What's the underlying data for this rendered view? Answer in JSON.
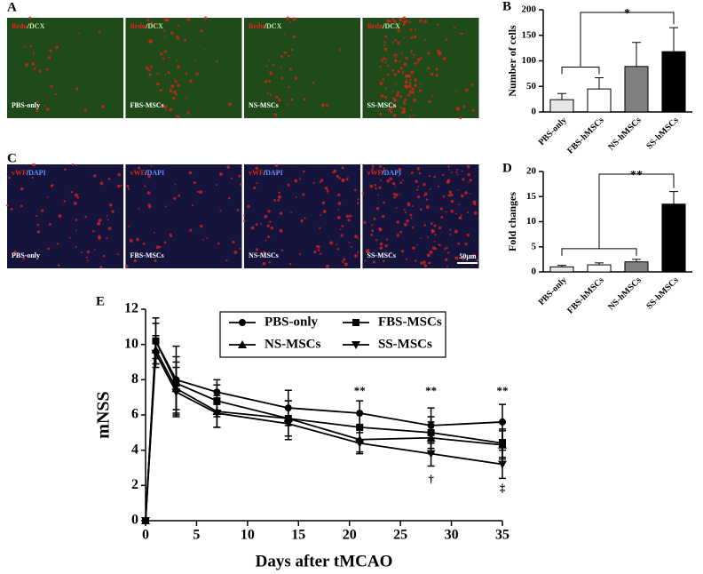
{
  "panel_A": {
    "label": "A",
    "tiles": [
      {
        "stain": [
          "Brdu",
          "/",
          "DCX"
        ],
        "group": "PBS-only"
      },
      {
        "stain": [
          "Brdu",
          "/",
          "DCX"
        ],
        "group": "FBS-MSCs"
      },
      {
        "stain": [
          "Brdu",
          "/",
          "DCX"
        ],
        "group": "NS-MSCs"
      },
      {
        "stain": [
          "Brdu",
          "/",
          "DCX"
        ],
        "group": "SS-MSCs"
      }
    ]
  },
  "panel_C": {
    "label": "C",
    "scale_bar": "50μm",
    "tiles": [
      {
        "stain": [
          "vWF",
          "/",
          "DAPI"
        ],
        "group": "PBS-only"
      },
      {
        "stain": [
          "vWF",
          "/",
          "DAPI"
        ],
        "group": "FBS-MSCs"
      },
      {
        "stain": [
          "vWF",
          "/",
          "DAPI"
        ],
        "group": "NS-MSCs"
      },
      {
        "stain": [
          "vWF",
          "/",
          "DAPI"
        ],
        "group": "SS-MSCs"
      }
    ]
  },
  "chart_data": [
    {
      "type": "bar",
      "panel": "B",
      "ylabel": "Number of cells",
      "categories": [
        "PBS-only",
        "FBS-hMSCs",
        "NS-hMSCs",
        "SS-hMSCs"
      ],
      "values": [
        24,
        45,
        89,
        118
      ],
      "errors": [
        12,
        22,
        47,
        47
      ],
      "colors": [
        "#e6e6e6",
        "#ffffff",
        "#808080",
        "#000000"
      ],
      "ylim": [
        0,
        200
      ],
      "yticks": [
        0,
        50,
        100,
        150,
        200
      ],
      "annotation": "*"
    },
    {
      "type": "bar",
      "panel": "D",
      "ylabel": "Fold changes",
      "categories": [
        "PBS-only",
        "FBS-hMSCs",
        "NS-hMSCs",
        "SS-hMSCs"
      ],
      "values": [
        1.0,
        1.4,
        2.0,
        13.5
      ],
      "errors": [
        0.3,
        0.4,
        0.5,
        2.5
      ],
      "colors": [
        "#e6e6e6",
        "#ffffff",
        "#808080",
        "#000000"
      ],
      "ylim": [
        0,
        20
      ],
      "yticks": [
        0,
        5,
        10,
        15,
        20
      ],
      "annotation": "**"
    },
    {
      "type": "line",
      "panel": "E",
      "ylabel": "mNSS",
      "xlabel": "Days after tMCAO",
      "x": [
        0,
        1,
        3,
        7,
        14,
        21,
        28,
        35
      ],
      "xlim": [
        0,
        35
      ],
      "xticks": [
        0,
        5,
        10,
        15,
        20,
        25,
        30,
        35
      ],
      "ylim": [
        0,
        12
      ],
      "yticks": [
        0,
        2,
        4,
        6,
        8,
        10,
        12
      ],
      "series": [
        {
          "name": "PBS-only",
          "marker": "circle",
          "color": "#000000",
          "values": [
            0,
            10.2,
            8.0,
            7.3,
            6.4,
            6.1,
            5.4,
            5.6
          ],
          "errors": [
            0,
            1.3,
            1.9,
            0.7,
            1.0,
            0.7,
            1.0,
            1.0
          ]
        },
        {
          "name": "FBS-MSCs",
          "marker": "square",
          "color": "#000000",
          "values": [
            0,
            10.2,
            7.8,
            6.8,
            5.8,
            5.3,
            5.0,
            4.4
          ],
          "errors": [
            0,
            1.0,
            1.5,
            0.9,
            1.0,
            0.8,
            0.9,
            0.8
          ]
        },
        {
          "name": "NS-MSCs",
          "marker": "triangle-up",
          "color": "#000000",
          "values": [
            0,
            9.7,
            7.5,
            6.2,
            5.8,
            4.6,
            4.7,
            4.3
          ],
          "errors": [
            0,
            0.8,
            1.5,
            0.9,
            1.0,
            0.7,
            0.9,
            0.8
          ]
        },
        {
          "name": "SS-MSCs",
          "marker": "triangle-down",
          "color": "#000000",
          "values": [
            0,
            9.5,
            7.3,
            6.1,
            5.5,
            4.4,
            3.8,
            3.2
          ],
          "errors": [
            0,
            0.8,
            1.4,
            0.8,
            0.9,
            0.6,
            0.7,
            0.8
          ]
        }
      ],
      "annotations": [
        {
          "text": "**",
          "x": 21,
          "y": 7.3
        },
        {
          "text": "**",
          "x": 28,
          "y": 7.3
        },
        {
          "text": "**",
          "x": 35,
          "y": 7.3
        },
        {
          "text": "†",
          "x": 28,
          "y": 2.3
        },
        {
          "text": "‡",
          "x": 35,
          "y": 1.8
        }
      ]
    }
  ]
}
